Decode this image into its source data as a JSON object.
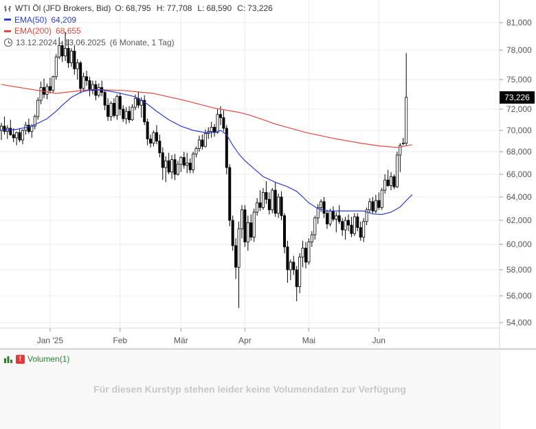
{
  "legend": {
    "instrument": "WTI Öl (JFD Brokers, Bid)",
    "o_label": "O:",
    "o": "68,795",
    "h_label": "H:",
    "h": "77,708",
    "l_label": "L:",
    "l": "68,590",
    "c_label": "C:",
    "c": "73,226",
    "ema50_label": "EMA(50)",
    "ema50_value": "64,209",
    "ema200_label": "EMA(200)",
    "ema200_value": "68,655",
    "range": "13.12.2024 - 13.06.2025",
    "period": "(6 Monate, 1 Tag)"
  },
  "colors": {
    "ema50": "#2a3cd6",
    "ema200": "#e5463c",
    "candle": "#000000",
    "grid": "#ebebeb"
  },
  "last_price_label": "73,226",
  "volume": {
    "title": "Volumen(1)",
    "message": "Für diesen Kurstyp stehen leider keine Volumendaten zur Verfügung"
  },
  "chart_data": {
    "type": "candlestick",
    "y_ticks": [
      "54,000",
      "56,000",
      "58,000",
      "60,000",
      "62,000",
      "64,000",
      "66,000",
      "68,000",
      "70,000",
      "72,000",
      "75,000",
      "78,000",
      "81,000"
    ],
    "y_range": [
      53,
      82
    ],
    "x_labels": [
      {
        "label": "Jan '25",
        "index": 16
      },
      {
        "label": "Feb",
        "index": 39
      },
      {
        "label": "Mär",
        "index": 59
      },
      {
        "label": "Apr",
        "index": 80
      },
      {
        "label": "Mai",
        "index": 101
      },
      {
        "label": "Jun",
        "index": 124
      }
    ],
    "candles": [
      [
        70.0,
        70.7,
        69.1,
        70.4
      ],
      [
        70.4,
        71.3,
        69.6,
        69.9
      ],
      [
        69.9,
        70.5,
        69.2,
        70.2
      ],
      [
        70.2,
        71.0,
        69.5,
        69.6
      ],
      [
        69.6,
        70.2,
        68.9,
        69.3
      ],
      [
        69.3,
        69.9,
        68.6,
        69.8
      ],
      [
        69.8,
        70.2,
        68.9,
        69.1
      ],
      [
        69.1,
        70.1,
        68.7,
        70.0
      ],
      [
        70.0,
        70.8,
        69.6,
        70.5
      ],
      [
        70.5,
        71.1,
        69.7,
        69.9
      ],
      [
        69.9,
        70.6,
        69.3,
        70.4
      ],
      [
        70.4,
        71.5,
        70.1,
        71.3
      ],
      [
        71.3,
        73.2,
        71.0,
        72.9
      ],
      [
        72.9,
        74.8,
        72.5,
        74.2
      ],
      [
        74.2,
        75.1,
        73.1,
        73.5
      ],
      [
        73.5,
        74.6,
        73.0,
        74.3
      ],
      [
        74.3,
        75.2,
        73.6,
        73.9
      ],
      [
        73.9,
        75.4,
        73.7,
        75.3
      ],
      [
        75.3,
        77.6,
        75.0,
        77.3
      ],
      [
        77.3,
        79.4,
        77.1,
        78.5
      ],
      [
        78.5,
        79.0,
        76.8,
        77.4
      ],
      [
        77.4,
        80.0,
        76.9,
        78.2
      ],
      [
        78.2,
        79.2,
        76.2,
        76.7
      ],
      [
        76.7,
        78.2,
        76.3,
        77.9
      ],
      [
        77.9,
        78.5,
        75.5,
        76.1
      ],
      [
        76.1,
        77.1,
        75.0,
        76.7
      ],
      [
        76.7,
        76.9,
        73.6,
        74.1
      ],
      [
        74.1,
        75.7,
        73.8,
        75.3
      ],
      [
        75.3,
        75.9,
        74.4,
        74.9
      ],
      [
        74.9,
        75.3,
        73.3,
        73.9
      ],
      [
        73.9,
        74.9,
        73.5,
        74.5
      ],
      [
        74.5,
        74.9,
        72.9,
        73.4
      ],
      [
        73.4,
        74.6,
        73.2,
        74.2
      ],
      [
        74.2,
        74.9,
        73.3,
        73.7
      ],
      [
        73.7,
        73.9,
        71.9,
        72.4
      ],
      [
        72.4,
        73.1,
        70.9,
        71.3
      ],
      [
        71.3,
        72.8,
        70.9,
        72.6
      ],
      [
        72.6,
        73.1,
        71.2,
        71.4
      ],
      [
        71.4,
        73.5,
        71.0,
        73.3
      ],
      [
        73.3,
        73.6,
        71.4,
        72.0
      ],
      [
        72.0,
        72.4,
        70.8,
        71.1
      ],
      [
        71.1,
        72.2,
        70.6,
        71.8
      ],
      [
        71.8,
        72.3,
        70.7,
        71.0
      ],
      [
        71.0,
        72.5,
        70.9,
        72.2
      ],
      [
        72.2,
        73.5,
        71.9,
        73.1
      ],
      [
        73.1,
        73.8,
        72.1,
        72.4
      ],
      [
        72.4,
        73.2,
        71.2,
        72.9
      ],
      [
        72.9,
        73.4,
        70.5,
        70.8
      ],
      [
        70.8,
        71.1,
        68.6,
        69.2
      ],
      [
        69.2,
        69.6,
        68.4,
        68.8
      ],
      [
        68.8,
        70.0,
        68.5,
        69.8
      ],
      [
        69.8,
        70.5,
        68.7,
        69.0
      ],
      [
        69.0,
        69.6,
        67.5,
        67.9
      ],
      [
        67.9,
        68.4,
        65.5,
        66.6
      ],
      [
        66.6,
        67.6,
        65.3,
        67.2
      ],
      [
        67.2,
        67.9,
        66.0,
        66.2
      ],
      [
        66.2,
        67.7,
        65.6,
        67.3
      ],
      [
        67.3,
        67.8,
        65.5,
        66.0
      ],
      [
        66.0,
        67.2,
        65.9,
        66.9
      ],
      [
        66.9,
        67.6,
        66.2,
        67.5
      ],
      [
        67.5,
        68.0,
        66.5,
        66.8
      ],
      [
        66.8,
        67.9,
        66.1,
        67.0
      ],
      [
        67.0,
        67.4,
        66.1,
        66.4
      ],
      [
        66.4,
        68.0,
        66.1,
        67.8
      ],
      [
        67.8,
        68.5,
        67.5,
        68.3
      ],
      [
        68.3,
        69.5,
        68.0,
        69.1
      ],
      [
        69.1,
        69.6,
        68.2,
        68.5
      ],
      [
        68.5,
        70.1,
        68.4,
        69.7
      ],
      [
        69.7,
        70.3,
        69.2,
        69.9
      ],
      [
        69.9,
        70.8,
        69.3,
        70.3
      ],
      [
        70.3,
        70.6,
        69.4,
        69.8
      ],
      [
        69.8,
        72.0,
        69.7,
        71.5
      ],
      [
        71.5,
        72.3,
        70.5,
        71.2
      ],
      [
        71.2,
        71.9,
        69.9,
        70.2
      ],
      [
        70.2,
        70.5,
        66.0,
        66.6
      ],
      [
        66.6,
        66.9,
        61.5,
        62.0
      ],
      [
        62.0,
        62.4,
        59.5,
        59.9
      ],
      [
        59.9,
        60.5,
        57.3,
        58.2
      ],
      [
        58.2,
        61.9,
        55.1,
        61.3
      ],
      [
        61.3,
        63.3,
        60.5,
        62.9
      ],
      [
        62.9,
        63.3,
        59.8,
        60.2
      ],
      [
        60.2,
        62.4,
        59.5,
        61.8
      ],
      [
        61.8,
        62.5,
        60.3,
        60.6
      ],
      [
        60.6,
        63.0,
        60.2,
        62.7
      ],
      [
        62.7,
        63.9,
        62.4,
        63.5
      ],
      [
        63.5,
        64.6,
        62.8,
        63.1
      ],
      [
        63.1,
        64.8,
        62.9,
        64.4
      ],
      [
        64.4,
        65.4,
        63.4,
        63.8
      ],
      [
        63.8,
        64.4,
        62.5,
        62.9
      ],
      [
        62.9,
        64.8,
        62.6,
        64.6
      ],
      [
        64.6,
        65.3,
        62.3,
        62.6
      ],
      [
        62.6,
        64.3,
        62.2,
        64.0
      ],
      [
        64.0,
        64.5,
        62.0,
        62.4
      ],
      [
        62.4,
        62.6,
        59.3,
        59.8
      ],
      [
        59.8,
        60.3,
        57.0,
        58.0
      ],
      [
        58.0,
        58.8,
        57.2,
        58.6
      ],
      [
        58.6,
        59.1,
        57.6,
        58.0
      ],
      [
        58.0,
        58.3,
        55.6,
        56.7
      ],
      [
        56.7,
        59.3,
        56.2,
        59.0
      ],
      [
        59.0,
        60.3,
        58.2,
        59.7
      ],
      [
        59.7,
        60.2,
        58.1,
        58.6
      ],
      [
        58.6,
        60.5,
        58.4,
        60.2
      ],
      [
        60.2,
        61.1,
        59.8,
        60.8
      ],
      [
        60.8,
        62.4,
        60.4,
        62.2
      ],
      [
        62.2,
        63.4,
        61.7,
        63.1
      ],
      [
        63.1,
        63.8,
        62.7,
        63.6
      ],
      [
        63.6,
        64.0,
        62.2,
        62.6
      ],
      [
        62.6,
        62.9,
        61.3,
        61.7
      ],
      [
        61.7,
        63.0,
        61.5,
        62.8
      ],
      [
        62.8,
        63.2,
        61.9,
        62.1
      ],
      [
        62.1,
        62.7,
        61.0,
        62.4
      ],
      [
        62.4,
        63.3,
        61.7,
        61.9
      ],
      [
        61.9,
        62.2,
        60.7,
        61.2
      ],
      [
        61.2,
        62.3,
        60.4,
        62.0
      ],
      [
        62.0,
        62.5,
        61.1,
        61.6
      ],
      [
        61.6,
        62.3,
        60.6,
        60.9
      ],
      [
        60.9,
        62.6,
        60.7,
        62.3
      ],
      [
        62.3,
        62.6,
        61.1,
        61.4
      ],
      [
        61.4,
        61.9,
        60.3,
        60.6
      ],
      [
        60.6,
        62.2,
        60.2,
        61.9
      ],
      [
        61.9,
        63.1,
        61.6,
        62.9
      ],
      [
        62.9,
        63.9,
        62.6,
        63.6
      ],
      [
        63.6,
        64.0,
        62.6,
        62.8
      ],
      [
        62.8,
        64.2,
        62.6,
        63.7
      ],
      [
        63.7,
        64.4,
        62.9,
        63.1
      ],
      [
        63.1,
        64.8,
        62.9,
        64.6
      ],
      [
        64.6,
        66.0,
        64.3,
        65.5
      ],
      [
        65.5,
        66.4,
        64.9,
        65.0
      ],
      [
        65.0,
        66.2,
        64.6,
        65.8
      ],
      [
        65.8,
        66.0,
        64.7,
        64.9
      ],
      [
        64.9,
        68.0,
        64.8,
        67.7
      ],
      [
        67.7,
        68.8,
        66.2,
        68.6
      ],
      [
        68.8,
        69.3,
        68.6,
        68.8
      ],
      [
        68.8,
        77.7,
        68.6,
        73.2
      ]
    ],
    "ema50": [
      [
        0,
        70.0
      ],
      [
        5,
        70.1
      ],
      [
        10,
        70.4
      ],
      [
        15,
        71.1
      ],
      [
        18,
        71.8
      ],
      [
        20,
        72.4
      ],
      [
        23,
        73.2
      ],
      [
        26,
        73.7
      ],
      [
        29,
        73.95
      ],
      [
        33,
        73.95
      ],
      [
        37,
        73.75
      ],
      [
        40,
        73.55
      ],
      [
        44,
        73.25
      ],
      [
        48,
        72.5
      ],
      [
        51,
        71.8
      ],
      [
        55,
        71.0
      ],
      [
        59,
        70.4
      ],
      [
        63,
        70.0
      ],
      [
        67,
        69.8
      ],
      [
        70,
        69.8
      ],
      [
        72,
        70.0
      ],
      [
        74,
        69.6
      ],
      [
        76,
        68.6
      ],
      [
        78,
        67.8
      ],
      [
        80,
        67.2
      ],
      [
        83,
        66.5
      ],
      [
        86,
        65.8
      ],
      [
        90,
        65.3
      ],
      [
        94,
        64.9
      ],
      [
        97,
        64.5
      ],
      [
        99,
        64.0
      ],
      [
        101,
        63.5
      ],
      [
        104,
        63.0
      ],
      [
        107,
        62.8
      ],
      [
        111,
        62.8
      ],
      [
        115,
        62.8
      ],
      [
        119,
        62.8
      ],
      [
        122,
        62.55
      ],
      [
        125,
        62.5
      ],
      [
        128,
        62.7
      ],
      [
        131,
        63.15
      ],
      [
        133,
        63.7
      ],
      [
        135,
        64.209
      ]
    ],
    "ema200": [
      [
        0,
        74.5
      ],
      [
        10,
        74.0
      ],
      [
        18,
        73.6
      ],
      [
        25,
        73.85
      ],
      [
        30,
        74.0
      ],
      [
        40,
        73.9
      ],
      [
        50,
        73.6
      ],
      [
        60,
        72.9
      ],
      [
        70,
        72.1
      ],
      [
        78,
        71.7
      ],
      [
        82,
        71.4
      ],
      [
        90,
        70.6
      ],
      [
        100,
        69.8
      ],
      [
        110,
        69.2
      ],
      [
        118,
        68.8
      ],
      [
        124,
        68.55
      ],
      [
        130,
        68.4
      ],
      [
        135,
        68.655
      ]
    ]
  }
}
